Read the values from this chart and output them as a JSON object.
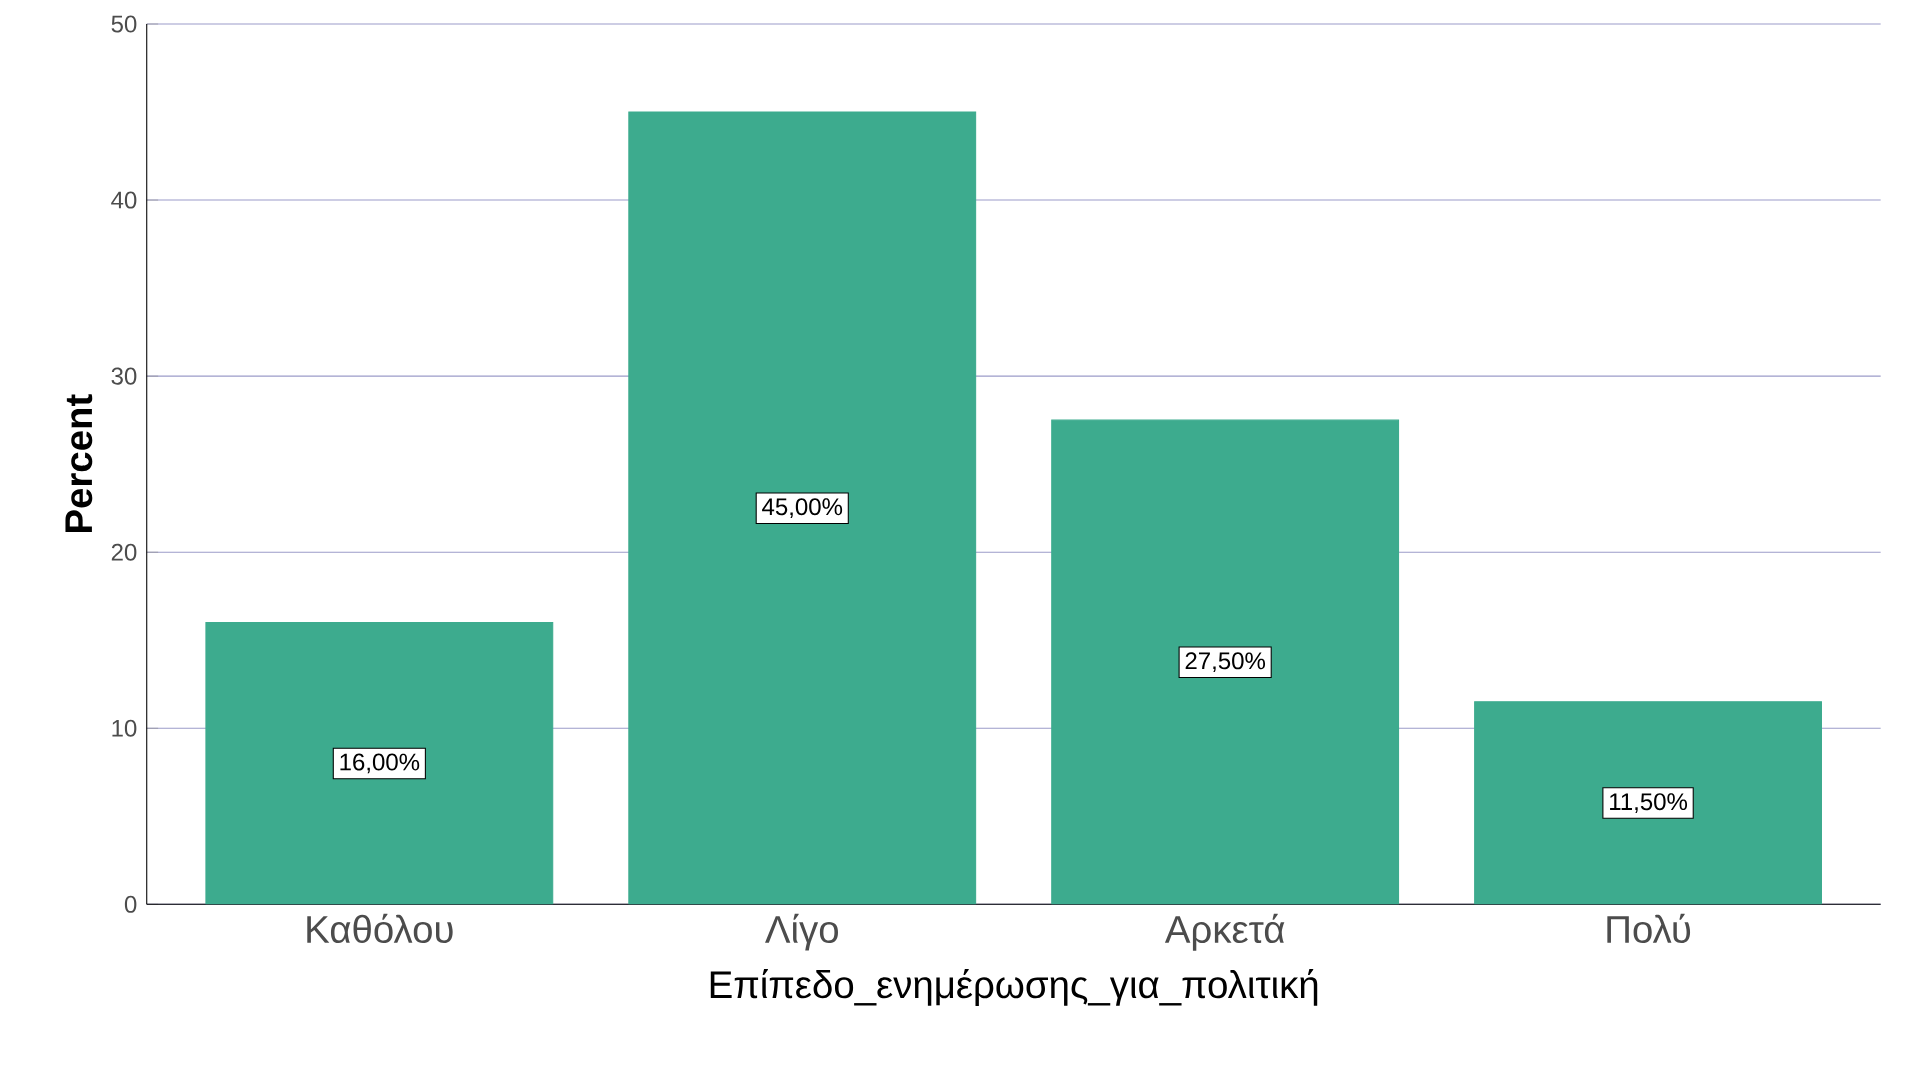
{
  "chart_data": {
    "type": "bar",
    "xlabel": "Επίπεδο_ενημέρωσης_για_πολιτική",
    "ylabel": "Percent",
    "categories": [
      "Καθόλου",
      "Λίγο",
      "Αρκετά",
      "Πολύ"
    ],
    "values": [
      16,
      45,
      27.5,
      11.5
    ],
    "value_labels": [
      "16,00%",
      "45,00%",
      "27,50%",
      "11,50%"
    ],
    "color": "#3dab8e",
    "ylim": [
      0,
      50
    ],
    "yticks": [
      0,
      10,
      20,
      30,
      40,
      50
    ],
    "grid": "y"
  }
}
